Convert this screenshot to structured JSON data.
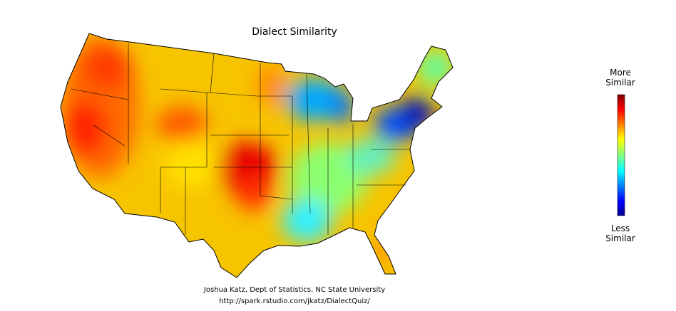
{
  "title": "Dialect Similarity",
  "colorbar": {
    "high_label": "More Similar",
    "low_label": "Less Similar"
  },
  "credits": [
    "Joshua Katz, Dept of Statistics, NC State University",
    "http://spark.rstudio.com/jkatz/DialectQuiz/"
  ]
}
